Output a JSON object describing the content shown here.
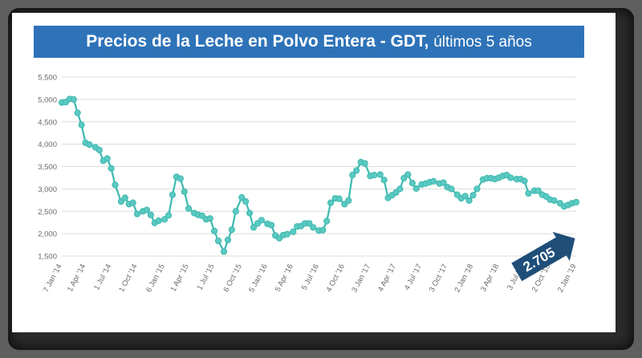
{
  "title": {
    "main": "Precios de la Leche en Polvo Entera - GDT,",
    "sub": "últimos 5 años"
  },
  "colors": {
    "title_bar": "#2e73b8",
    "series": "#3cb8b0",
    "marker_fill": "#5cc9c1",
    "callout": "#1f4e79",
    "grid": "#dcdcdc"
  },
  "chart_data": {
    "type": "line",
    "title": "Precios de la Leche en Polvo Entera - GDT, últimos 5 años",
    "xlabel": "",
    "ylabel": "",
    "ylim": [
      1500,
      5500
    ],
    "yticks": [
      1500,
      2000,
      2500,
      3000,
      3500,
      4000,
      4500,
      5000,
      5500
    ],
    "ytick_labels": [
      "1,500",
      "2,000",
      "2,500",
      "3,000",
      "3,500",
      "4,000",
      "4,500",
      "5,000",
      "5,500"
    ],
    "xlim": [
      "2014-01-07",
      "2019-01-02"
    ],
    "xticks": [
      {
        "date": "2014-01-07",
        "label": "7 Jan '14"
      },
      {
        "date": "2014-04-01",
        "label": "1 Apr '14"
      },
      {
        "date": "2014-07-01",
        "label": "1 Jul '14"
      },
      {
        "date": "2014-10-01",
        "label": "1 Oct '14"
      },
      {
        "date": "2015-01-06",
        "label": "6 Jan '15"
      },
      {
        "date": "2015-04-01",
        "label": "1 Apr '15"
      },
      {
        "date": "2015-07-01",
        "label": "1 Jul '15"
      },
      {
        "date": "2015-10-06",
        "label": "6 Oct '15"
      },
      {
        "date": "2016-01-05",
        "label": "5 Jan '16"
      },
      {
        "date": "2016-04-05",
        "label": "5 Apr '16"
      },
      {
        "date": "2016-07-05",
        "label": "5 Jul '16"
      },
      {
        "date": "2016-10-04",
        "label": "4 Oct '16"
      },
      {
        "date": "2017-01-03",
        "label": "3 Jan '17"
      },
      {
        "date": "2017-04-04",
        "label": "4 Apr '17"
      },
      {
        "date": "2017-07-04",
        "label": "4 Jul '17"
      },
      {
        "date": "2017-10-03",
        "label": "3 Oct '17"
      },
      {
        "date": "2018-01-02",
        "label": "2 Jan '18"
      },
      {
        "date": "2018-04-03",
        "label": "3 Apr '18"
      },
      {
        "date": "2018-07-03",
        "label": "3 Jul '18"
      },
      {
        "date": "2018-10-02",
        "label": "2 Oct '18"
      },
      {
        "date": "2019-01-02",
        "label": "2 Jan '19"
      }
    ],
    "grid": true,
    "legend": false,
    "series": [
      {
        "points": [
          [
            "2014-01-07",
            4930
          ],
          [
            "2014-01-21",
            4940
          ],
          [
            "2014-02-04",
            5010
          ],
          [
            "2014-02-18",
            5000
          ],
          [
            "2014-03-04",
            4700
          ],
          [
            "2014-03-18",
            4430
          ],
          [
            "2014-04-01",
            4030
          ],
          [
            "2014-04-15",
            3990
          ],
          [
            "2014-05-06",
            3930
          ],
          [
            "2014-05-20",
            3870
          ],
          [
            "2014-06-03",
            3630
          ],
          [
            "2014-06-17",
            3680
          ],
          [
            "2014-07-01",
            3460
          ],
          [
            "2014-07-15",
            3090
          ],
          [
            "2014-08-05",
            2720
          ],
          [
            "2014-08-19",
            2800
          ],
          [
            "2014-09-02",
            2660
          ],
          [
            "2014-09-16",
            2690
          ],
          [
            "2014-10-01",
            2440
          ],
          [
            "2014-10-21",
            2500
          ],
          [
            "2014-11-04",
            2530
          ],
          [
            "2014-11-18",
            2420
          ],
          [
            "2014-12-02",
            2240
          ],
          [
            "2014-12-16",
            2290
          ],
          [
            "2015-01-06",
            2320
          ],
          [
            "2015-01-20",
            2410
          ],
          [
            "2015-02-03",
            2870
          ],
          [
            "2015-02-17",
            3270
          ],
          [
            "2015-03-03",
            3230
          ],
          [
            "2015-03-17",
            2940
          ],
          [
            "2015-04-01",
            2560
          ],
          [
            "2015-04-21",
            2460
          ],
          [
            "2015-05-05",
            2420
          ],
          [
            "2015-05-19",
            2400
          ],
          [
            "2015-06-02",
            2320
          ],
          [
            "2015-06-16",
            2340
          ],
          [
            "2015-07-01",
            2060
          ],
          [
            "2015-07-15",
            1840
          ],
          [
            "2015-08-04",
            1600
          ],
          [
            "2015-08-18",
            1860
          ],
          [
            "2015-09-01",
            2090
          ],
          [
            "2015-09-15",
            2500
          ],
          [
            "2015-10-06",
            2810
          ],
          [
            "2015-10-20",
            2720
          ],
          [
            "2015-11-03",
            2460
          ],
          [
            "2015-11-17",
            2140
          ],
          [
            "2015-12-01",
            2230
          ],
          [
            "2015-12-15",
            2300
          ],
          [
            "2016-01-05",
            2220
          ],
          [
            "2016-01-19",
            2190
          ],
          [
            "2016-02-02",
            1960
          ],
          [
            "2016-02-16",
            1900
          ],
          [
            "2016-03-01",
            1970
          ],
          [
            "2016-03-15",
            1990
          ],
          [
            "2016-04-05",
            2040
          ],
          [
            "2016-04-19",
            2160
          ],
          [
            "2016-05-03",
            2170
          ],
          [
            "2016-05-17",
            2230
          ],
          [
            "2016-06-01",
            2230
          ],
          [
            "2016-06-15",
            2140
          ],
          [
            "2016-07-05",
            2070
          ],
          [
            "2016-07-19",
            2080
          ],
          [
            "2016-08-02",
            2280
          ],
          [
            "2016-08-16",
            2690
          ],
          [
            "2016-09-01",
            2790
          ],
          [
            "2016-09-15",
            2780
          ],
          [
            "2016-10-04",
            2660
          ],
          [
            "2016-10-18",
            2740
          ],
          [
            "2016-11-01",
            3310
          ],
          [
            "2016-11-15",
            3410
          ],
          [
            "2016-12-01",
            3600
          ],
          [
            "2016-12-15",
            3570
          ],
          [
            "2017-01-03",
            3290
          ],
          [
            "2017-01-17",
            3310
          ],
          [
            "2017-02-07",
            3320
          ],
          [
            "2017-02-21",
            3200
          ],
          [
            "2017-03-07",
            2800
          ],
          [
            "2017-03-21",
            2860
          ],
          [
            "2017-04-04",
            2920
          ],
          [
            "2017-04-18",
            3000
          ],
          [
            "2017-05-02",
            3240
          ],
          [
            "2017-05-16",
            3320
          ],
          [
            "2017-06-01",
            3130
          ],
          [
            "2017-06-15",
            3010
          ],
          [
            "2017-07-04",
            3100
          ],
          [
            "2017-07-18",
            3120
          ],
          [
            "2017-08-01",
            3150
          ],
          [
            "2017-08-15",
            3170
          ],
          [
            "2017-09-05",
            3120
          ],
          [
            "2017-09-19",
            3140
          ],
          [
            "2017-10-03",
            3040
          ],
          [
            "2017-10-17",
            3000
          ],
          [
            "2017-11-07",
            2870
          ],
          [
            "2017-11-21",
            2790
          ],
          [
            "2017-12-05",
            2840
          ],
          [
            "2017-12-19",
            2740
          ],
          [
            "2018-01-02",
            2860
          ],
          [
            "2018-01-16",
            3000
          ],
          [
            "2018-02-06",
            3210
          ],
          [
            "2018-02-20",
            3240
          ],
          [
            "2018-03-06",
            3240
          ],
          [
            "2018-03-20",
            3220
          ],
          [
            "2018-04-03",
            3250
          ],
          [
            "2018-04-17",
            3290
          ],
          [
            "2018-05-01",
            3310
          ],
          [
            "2018-05-15",
            3250
          ],
          [
            "2018-06-05",
            3220
          ],
          [
            "2018-06-19",
            3220
          ],
          [
            "2018-07-03",
            3180
          ],
          [
            "2018-07-17",
            2900
          ],
          [
            "2018-08-07",
            2960
          ],
          [
            "2018-08-21",
            2960
          ],
          [
            "2018-09-04",
            2870
          ],
          [
            "2018-09-18",
            2830
          ],
          [
            "2018-10-02",
            2760
          ],
          [
            "2018-10-16",
            2740
          ],
          [
            "2018-11-06",
            2680
          ],
          [
            "2018-11-20",
            2610
          ],
          [
            "2018-12-04",
            2640
          ],
          [
            "2018-12-18",
            2680
          ],
          [
            "2019-01-02",
            2705
          ]
        ]
      }
    ],
    "annotations": [
      {
        "text": "2.705",
        "date": "2019-01-02",
        "value": 2705
      }
    ]
  }
}
